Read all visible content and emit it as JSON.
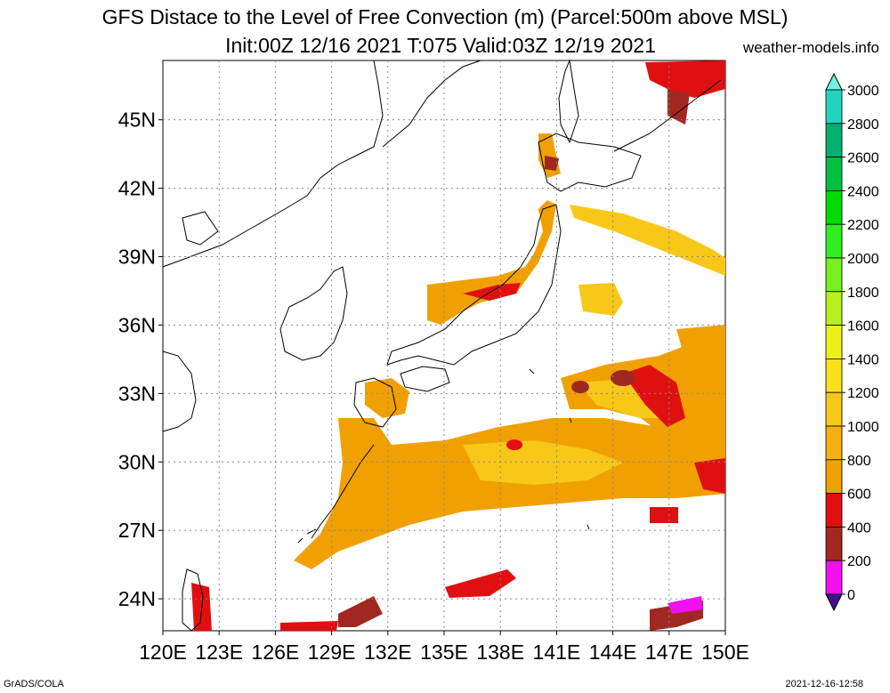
{
  "header": {
    "title_line1": "GFS Distace to the Level of Free Convection (m) (Parcel:500m above MSL)",
    "title_line2": "Init:00Z 12/16 2021 T:075 Valid:03Z 12/19 2021",
    "site": "weather-models.info"
  },
  "map": {
    "lon_labels": [
      "120E",
      "123E",
      "126E",
      "129E",
      "132E",
      "135E",
      "138E",
      "141E",
      "144E",
      "147E",
      "150E"
    ],
    "lat_labels": [
      "45N",
      "42N",
      "39N",
      "36N",
      "33N",
      "30N",
      "27N",
      "24N"
    ],
    "lat_values": [
      45,
      42,
      39,
      36,
      33,
      30,
      27,
      24
    ]
  },
  "colorbar": {
    "labels": [
      "3000",
      "2800",
      "2600",
      "2400",
      "2200",
      "2000",
      "1800",
      "1600",
      "1400",
      "1200",
      "1000",
      "800",
      "600",
      "400",
      "200",
      "0"
    ],
    "colors": [
      "#6ff2e4",
      "#20d4c0",
      "#00b070",
      "#00c040",
      "#00dc00",
      "#30ee20",
      "#78f020",
      "#b8f01c",
      "#ecf018",
      "#f8e01c",
      "#f8c818",
      "#f8b010",
      "#f0a000",
      "#e01010",
      "#a02820",
      "#f010f0",
      "#40108c"
    ],
    "top_arrow_color": "#6ff2e4",
    "bottom_arrow_color": "#40108c"
  },
  "footer": {
    "left": "GrADS/COLA",
    "right": "2021-12-16-12:58"
  }
}
